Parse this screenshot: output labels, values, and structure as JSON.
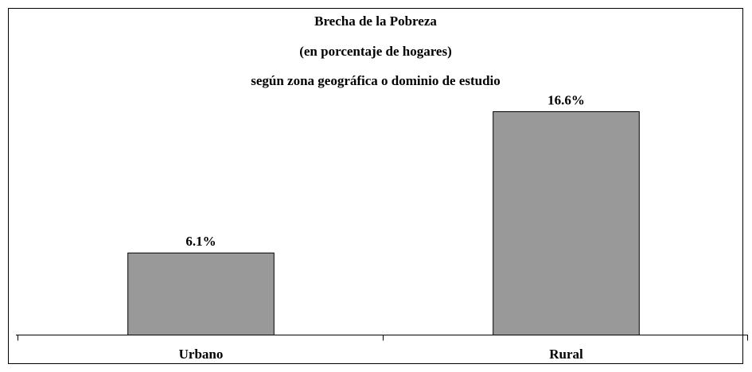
{
  "chart_data": {
    "type": "bar",
    "title": [
      "Brecha de la Pobreza",
      "(en porcentaje de hogares)",
      "según zona geográfica o dominio de estudio"
    ],
    "categories": [
      "Urbano",
      "Rural"
    ],
    "values": [
      6.1,
      16.6
    ],
    "value_labels": [
      "6.1%",
      "16.6%"
    ],
    "color": "#999999"
  }
}
